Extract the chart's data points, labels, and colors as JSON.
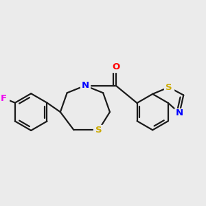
{
  "bg_color": "#EBEBEB",
  "bond_color": "#1a1a1a",
  "bond_width": 1.6,
  "atom_colors": {
    "F": "#EE00EE",
    "N": "#0000FF",
    "O": "#FF0000",
    "S": "#CCAA00"
  },
  "fs": 9.5,
  "figsize": [
    3.0,
    3.0
  ],
  "dpi": 100
}
